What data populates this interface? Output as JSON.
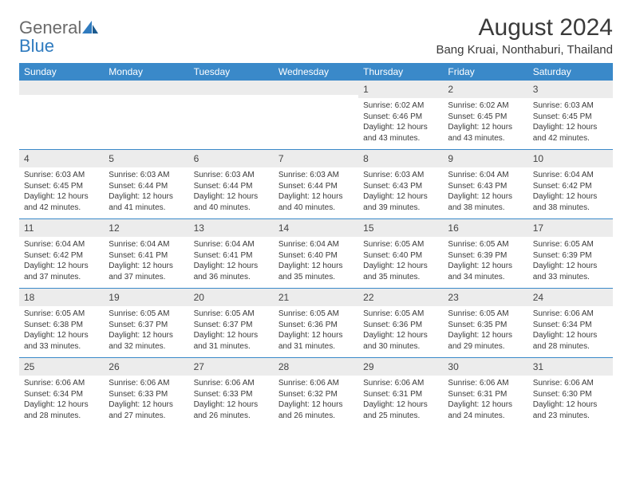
{
  "logo": {
    "general": "General",
    "blue": "Blue"
  },
  "title": "August 2024",
  "location": "Bang Kruai, Nonthaburi, Thailand",
  "colors": {
    "header_bg": "#3a89c9",
    "header_text": "#ffffff",
    "daynum_bg": "#ececec",
    "text": "#3a3a3a",
    "logo_gray": "#6a6a6a",
    "logo_blue": "#2f7bbf",
    "week_border": "#3a89c9"
  },
  "dow": [
    "Sunday",
    "Monday",
    "Tuesday",
    "Wednesday",
    "Thursday",
    "Friday",
    "Saturday"
  ],
  "weeks": [
    [
      {
        "n": "",
        "lines": []
      },
      {
        "n": "",
        "lines": []
      },
      {
        "n": "",
        "lines": []
      },
      {
        "n": "",
        "lines": []
      },
      {
        "n": "1",
        "lines": [
          "Sunrise: 6:02 AM",
          "Sunset: 6:46 PM",
          "Daylight: 12 hours",
          "and 43 minutes."
        ]
      },
      {
        "n": "2",
        "lines": [
          "Sunrise: 6:02 AM",
          "Sunset: 6:45 PM",
          "Daylight: 12 hours",
          "and 43 minutes."
        ]
      },
      {
        "n": "3",
        "lines": [
          "Sunrise: 6:03 AM",
          "Sunset: 6:45 PM",
          "Daylight: 12 hours",
          "and 42 minutes."
        ]
      }
    ],
    [
      {
        "n": "4",
        "lines": [
          "Sunrise: 6:03 AM",
          "Sunset: 6:45 PM",
          "Daylight: 12 hours",
          "and 42 minutes."
        ]
      },
      {
        "n": "5",
        "lines": [
          "Sunrise: 6:03 AM",
          "Sunset: 6:44 PM",
          "Daylight: 12 hours",
          "and 41 minutes."
        ]
      },
      {
        "n": "6",
        "lines": [
          "Sunrise: 6:03 AM",
          "Sunset: 6:44 PM",
          "Daylight: 12 hours",
          "and 40 minutes."
        ]
      },
      {
        "n": "7",
        "lines": [
          "Sunrise: 6:03 AM",
          "Sunset: 6:44 PM",
          "Daylight: 12 hours",
          "and 40 minutes."
        ]
      },
      {
        "n": "8",
        "lines": [
          "Sunrise: 6:03 AM",
          "Sunset: 6:43 PM",
          "Daylight: 12 hours",
          "and 39 minutes."
        ]
      },
      {
        "n": "9",
        "lines": [
          "Sunrise: 6:04 AM",
          "Sunset: 6:43 PM",
          "Daylight: 12 hours",
          "and 38 minutes."
        ]
      },
      {
        "n": "10",
        "lines": [
          "Sunrise: 6:04 AM",
          "Sunset: 6:42 PM",
          "Daylight: 12 hours",
          "and 38 minutes."
        ]
      }
    ],
    [
      {
        "n": "11",
        "lines": [
          "Sunrise: 6:04 AM",
          "Sunset: 6:42 PM",
          "Daylight: 12 hours",
          "and 37 minutes."
        ]
      },
      {
        "n": "12",
        "lines": [
          "Sunrise: 6:04 AM",
          "Sunset: 6:41 PM",
          "Daylight: 12 hours",
          "and 37 minutes."
        ]
      },
      {
        "n": "13",
        "lines": [
          "Sunrise: 6:04 AM",
          "Sunset: 6:41 PM",
          "Daylight: 12 hours",
          "and 36 minutes."
        ]
      },
      {
        "n": "14",
        "lines": [
          "Sunrise: 6:04 AM",
          "Sunset: 6:40 PM",
          "Daylight: 12 hours",
          "and 35 minutes."
        ]
      },
      {
        "n": "15",
        "lines": [
          "Sunrise: 6:05 AM",
          "Sunset: 6:40 PM",
          "Daylight: 12 hours",
          "and 35 minutes."
        ]
      },
      {
        "n": "16",
        "lines": [
          "Sunrise: 6:05 AM",
          "Sunset: 6:39 PM",
          "Daylight: 12 hours",
          "and 34 minutes."
        ]
      },
      {
        "n": "17",
        "lines": [
          "Sunrise: 6:05 AM",
          "Sunset: 6:39 PM",
          "Daylight: 12 hours",
          "and 33 minutes."
        ]
      }
    ],
    [
      {
        "n": "18",
        "lines": [
          "Sunrise: 6:05 AM",
          "Sunset: 6:38 PM",
          "Daylight: 12 hours",
          "and 33 minutes."
        ]
      },
      {
        "n": "19",
        "lines": [
          "Sunrise: 6:05 AM",
          "Sunset: 6:37 PM",
          "Daylight: 12 hours",
          "and 32 minutes."
        ]
      },
      {
        "n": "20",
        "lines": [
          "Sunrise: 6:05 AM",
          "Sunset: 6:37 PM",
          "Daylight: 12 hours",
          "and 31 minutes."
        ]
      },
      {
        "n": "21",
        "lines": [
          "Sunrise: 6:05 AM",
          "Sunset: 6:36 PM",
          "Daylight: 12 hours",
          "and 31 minutes."
        ]
      },
      {
        "n": "22",
        "lines": [
          "Sunrise: 6:05 AM",
          "Sunset: 6:36 PM",
          "Daylight: 12 hours",
          "and 30 minutes."
        ]
      },
      {
        "n": "23",
        "lines": [
          "Sunrise: 6:05 AM",
          "Sunset: 6:35 PM",
          "Daylight: 12 hours",
          "and 29 minutes."
        ]
      },
      {
        "n": "24",
        "lines": [
          "Sunrise: 6:06 AM",
          "Sunset: 6:34 PM",
          "Daylight: 12 hours",
          "and 28 minutes."
        ]
      }
    ],
    [
      {
        "n": "25",
        "lines": [
          "Sunrise: 6:06 AM",
          "Sunset: 6:34 PM",
          "Daylight: 12 hours",
          "and 28 minutes."
        ]
      },
      {
        "n": "26",
        "lines": [
          "Sunrise: 6:06 AM",
          "Sunset: 6:33 PM",
          "Daylight: 12 hours",
          "and 27 minutes."
        ]
      },
      {
        "n": "27",
        "lines": [
          "Sunrise: 6:06 AM",
          "Sunset: 6:33 PM",
          "Daylight: 12 hours",
          "and 26 minutes."
        ]
      },
      {
        "n": "28",
        "lines": [
          "Sunrise: 6:06 AM",
          "Sunset: 6:32 PM",
          "Daylight: 12 hours",
          "and 26 minutes."
        ]
      },
      {
        "n": "29",
        "lines": [
          "Sunrise: 6:06 AM",
          "Sunset: 6:31 PM",
          "Daylight: 12 hours",
          "and 25 minutes."
        ]
      },
      {
        "n": "30",
        "lines": [
          "Sunrise: 6:06 AM",
          "Sunset: 6:31 PM",
          "Daylight: 12 hours",
          "and 24 minutes."
        ]
      },
      {
        "n": "31",
        "lines": [
          "Sunrise: 6:06 AM",
          "Sunset: 6:30 PM",
          "Daylight: 12 hours",
          "and 23 minutes."
        ]
      }
    ]
  ]
}
